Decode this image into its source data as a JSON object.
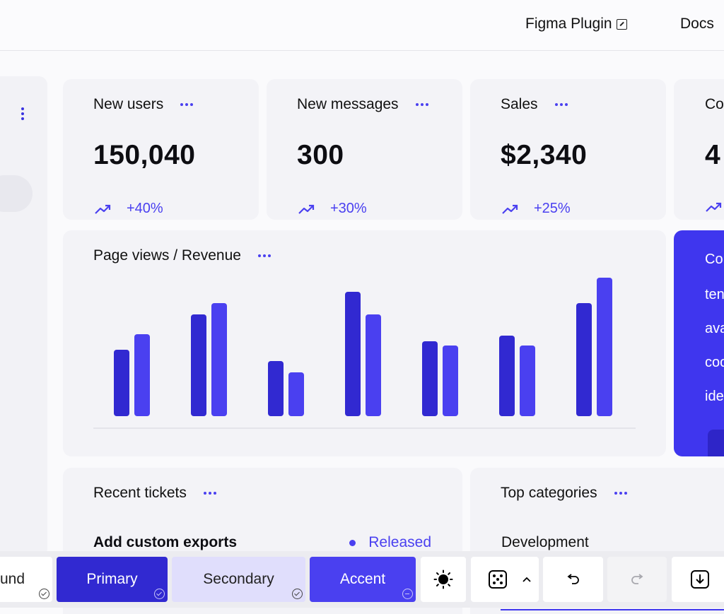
{
  "header": {
    "figma_plugin": "Figma Plugin",
    "docs": "Docs"
  },
  "stats": [
    {
      "title": "New users",
      "value": "150,040",
      "change": "+40%"
    },
    {
      "title": "New messages",
      "value": "300",
      "change": "+30%"
    },
    {
      "title": "Sales",
      "value": "$2,340",
      "change": "+25%"
    },
    {
      "title": "Co",
      "value": "4",
      "change": ""
    }
  ],
  "chart": {
    "title": "Page views / Revenue"
  },
  "chart_data": {
    "type": "bar",
    "title": "Page views / Revenue",
    "categories": [
      "",
      "",
      "",
      "",
      "",
      "",
      ""
    ],
    "series": [
      {
        "values": [
          47,
          72,
          39,
          88,
          53,
          57,
          80
        ]
      },
      {
        "values": [
          58,
          80,
          31,
          72,
          50,
          50,
          98
        ]
      }
    ],
    "colors": [
      "#3129d1",
      "#4a40f0"
    ],
    "ylim": [
      0,
      100
    ],
    "grid": false
  },
  "promo": {
    "lines": [
      "Co",
      "ten",
      "ava",
      "coo",
      "ide"
    ]
  },
  "tickets": {
    "title": "Recent tickets",
    "item_title": "Add custom exports",
    "item_status": "Released"
  },
  "categories": {
    "title": "Top categories",
    "item": "Development"
  },
  "toolbar": {
    "background_label": "und",
    "primary_label": "Primary",
    "secondary_label": "Secondary",
    "accent_label": "Accent"
  },
  "colors": {
    "primary": "#3129d1",
    "secondary": "#e0defc",
    "accent": "#4a40f0",
    "card": "#f3f3f7"
  },
  "icons": [
    "external-link-icon",
    "more-icon",
    "trend-up-icon",
    "sun-icon",
    "dice-icon",
    "chevron-up-icon",
    "undo-icon",
    "redo-icon",
    "download-icon",
    "check-circle-icon",
    "minus-circle-icon"
  ]
}
